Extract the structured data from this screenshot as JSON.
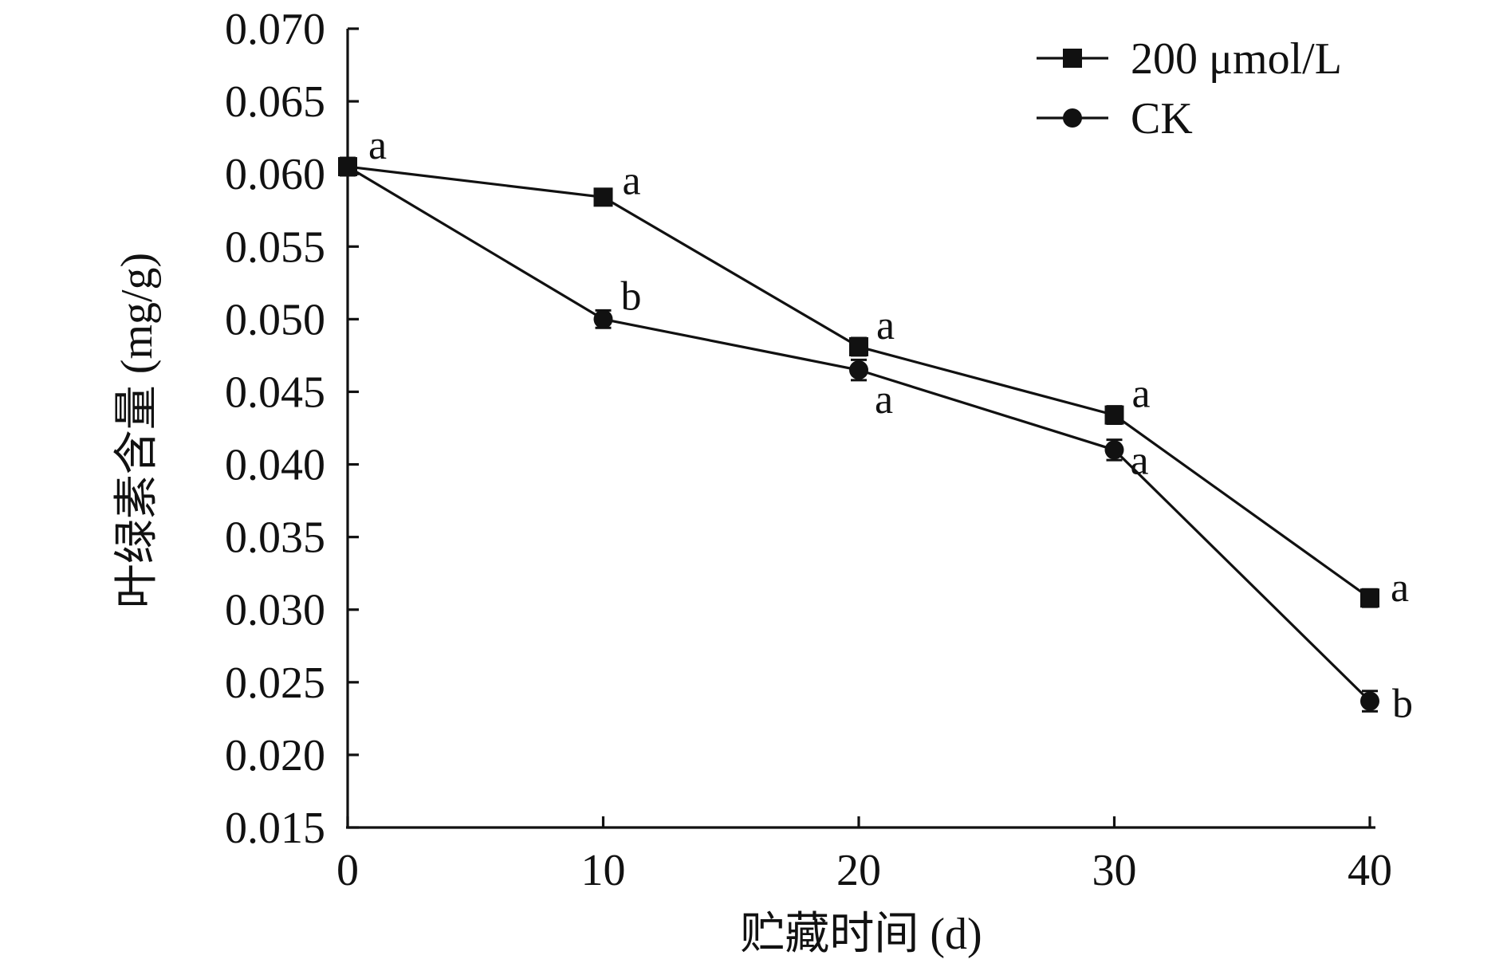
{
  "chart_data": {
    "type": "line",
    "xlabel": "贮藏时间 (d)",
    "ylabel": "叶绿素含量 (mg/g)",
    "x": [
      0,
      10,
      20,
      30,
      40
    ],
    "xlim": [
      0,
      40
    ],
    "ylim": [
      0.015,
      0.07
    ],
    "xticks": [
      "0",
      "10",
      "20",
      "30",
      "40"
    ],
    "yticks": [
      "0.015",
      "0.020",
      "0.025",
      "0.030",
      "0.035",
      "0.040",
      "0.045",
      "0.050",
      "0.055",
      "0.060",
      "0.065",
      "0.070"
    ],
    "grid": false,
    "legend_position": "top-right",
    "series": [
      {
        "name": "200 μmol/L",
        "marker": "square",
        "values": [
          0.0605,
          0.0584,
          0.0481,
          0.0434,
          0.0308
        ],
        "errors": [
          0.0006,
          0.0005,
          0.0006,
          0.0006,
          0.0006
        ],
        "significance": [
          "a",
          "a",
          "a",
          "a",
          "a"
        ]
      },
      {
        "name": "CK",
        "marker": "circle",
        "values": [
          0.0605,
          0.05,
          0.0465,
          0.041,
          0.0237
        ],
        "errors": [
          0.0006,
          0.0006,
          0.0007,
          0.0007,
          0.0007
        ],
        "significance": [
          "",
          "b",
          "a",
          "a",
          "b"
        ]
      }
    ]
  }
}
